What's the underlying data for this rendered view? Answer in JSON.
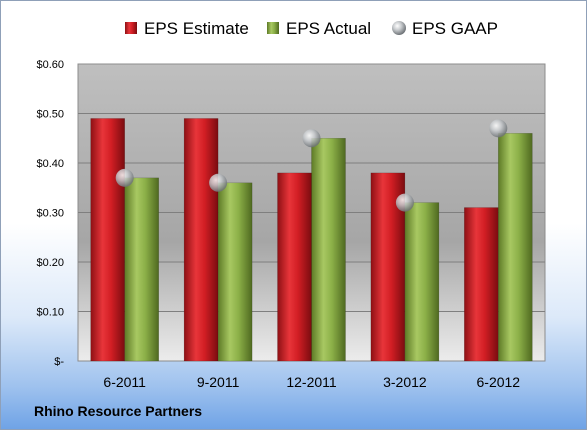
{
  "chart_data": {
    "type": "bar",
    "categories": [
      "6-2011",
      "9-2011",
      "12-2011",
      "3-2012",
      "6-2012"
    ],
    "series": [
      {
        "name": "EPS Estimate",
        "kind": "bar",
        "color": "#d21e24",
        "values": [
          0.49,
          0.49,
          0.38,
          0.38,
          0.31
        ]
      },
      {
        "name": "EPS Actual",
        "kind": "bar",
        "color": "#8cb048",
        "values": [
          0.37,
          0.36,
          0.45,
          0.32,
          0.46
        ]
      },
      {
        "name": "EPS GAAP",
        "kind": "marker",
        "color": "#b8bcc0",
        "values": [
          0.37,
          0.36,
          0.45,
          0.32,
          0.47
        ]
      }
    ],
    "ylim": [
      0,
      0.6
    ],
    "yticks": [
      0,
      0.1,
      0.2,
      0.3,
      0.4,
      0.5,
      0.6
    ],
    "ytick_labels": [
      "$-",
      "$0.10",
      "$0.20",
      "$0.30",
      "$0.40",
      "$0.50",
      "$0.60"
    ],
    "grid": true,
    "legend_position": "top"
  },
  "footer": {
    "company": "Rhino Resource Partners"
  }
}
